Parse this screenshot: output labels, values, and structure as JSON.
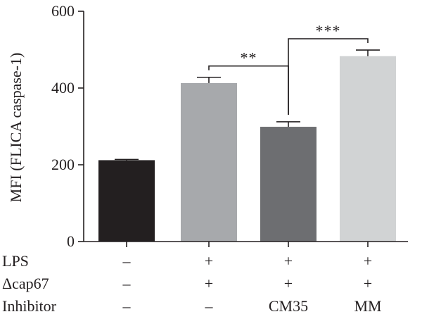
{
  "chart_data": {
    "type": "bar",
    "ylabel": "MFI (FLICA caspase-1)",
    "ylim": [
      0,
      600
    ],
    "yticks": [
      "0",
      "200",
      "400",
      "600"
    ],
    "grid": false,
    "bars": [
      {
        "value": 212,
        "error": 2,
        "color": "#231f20"
      },
      {
        "value": 413,
        "error": 15,
        "color": "#a7a9ac"
      },
      {
        "value": 299,
        "error": 13,
        "color": "#6d6e71"
      },
      {
        "value": 483,
        "error": 16,
        "color": "#d1d3d4"
      }
    ],
    "conditions": [
      {
        "label": "LPS",
        "values": [
          "–",
          "+",
          "+",
          "+"
        ]
      },
      {
        "label": "Δcap67",
        "values": [
          "–",
          "+",
          "+",
          "+"
        ]
      },
      {
        "label": "Inhibitor",
        "values": [
          "–",
          "–",
          "CM35",
          "MM"
        ]
      }
    ],
    "significance": [
      {
        "from": 1,
        "to": 2,
        "label": "**"
      },
      {
        "from": 2,
        "to": 3,
        "label": "***"
      }
    ]
  }
}
